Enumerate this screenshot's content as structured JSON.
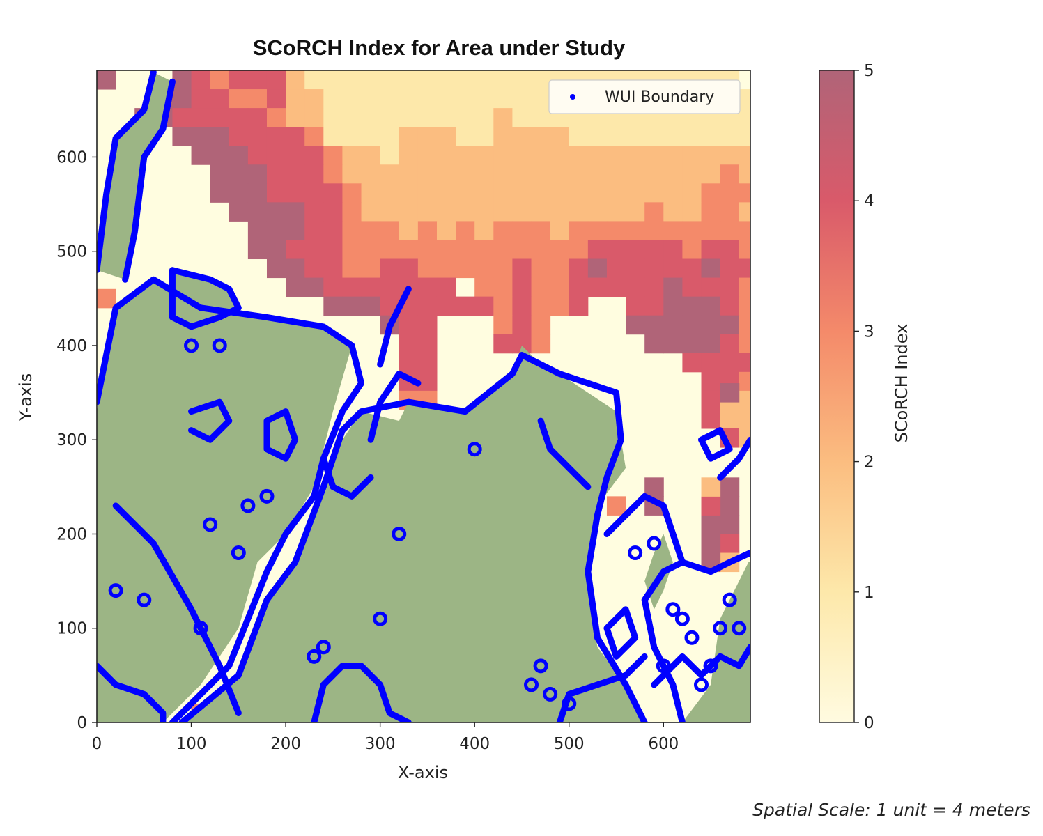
{
  "chart_data": {
    "type": "heatmap",
    "title": "SCoRCH Index for Area under Study",
    "xlabel": "X-axis",
    "ylabel": "Y-axis",
    "xlim": [
      0,
      692
    ],
    "ylim": [
      0,
      692
    ],
    "xticks": [
      0,
      100,
      200,
      300,
      400,
      500,
      600
    ],
    "yticks": [
      0,
      100,
      200,
      300,
      400,
      500,
      600
    ],
    "grid": false,
    "colorbar": {
      "label": "SCoRCH Index",
      "range": [
        0,
        5
      ],
      "ticks": [
        0,
        1,
        2,
        3,
        4,
        5
      ],
      "colormap": [
        "#fffbe0",
        "#fde8aa",
        "#fbbd80",
        "#f48a6a",
        "#d95a6a",
        "#b06478"
      ]
    },
    "legend": {
      "position": "top-right",
      "entries": [
        {
          "name": "WUI Boundary",
          "marker": "dot",
          "color": "#0000ff"
        }
      ]
    },
    "cell_size": 20,
    "nonburnable_color": "#9cb585",
    "boundary_color": "#0000ff",
    "grid_values": [
      "5000543444211111111111111111111111000",
      "0005544334221111111111111111111111100",
      "0055444443221111111112111111111111110",
      "0000555444431111222112222111111111120",
      "0000055544443221222222222222222222221",
      "0000005554443222222222222222222223222",
      "0000005554444322222222222222222233322",
      "0000000555544322222222222222232233222",
      "0000000055544333232323332333333333322",
      "0000000055444333333333333344444344322",
      "0000000005544334433333433454444454422",
      "0000000000554444444033433444445444322",
      "0000000000005554444443433400445554332",
      "0000000000000005440003430000555555330",
      "0000000000000000440004430000055554330",
      "0000000000000000440000000000000444420",
      "0000000000000000440000000000000044322",
      "0000000000000000330000000000000042232",
      "0000000000000000000000000000000042222",
      "0000000000000000000000000000000004222",
      "0000000000000000000000000000000000000"
    ],
    "extra_cells": [
      {
        "x": 0,
        "y": 440,
        "value": 3
      },
      {
        "x": 100,
        "y": 0,
        "value": 3
      },
      {
        "x": 540,
        "y": 220,
        "value": 3
      },
      {
        "x": 660,
        "y": 200,
        "value": 5
      },
      {
        "x": 640,
        "y": 200,
        "value": 5
      },
      {
        "x": 660,
        "y": 220,
        "value": 5
      },
      {
        "x": 640,
        "y": 220,
        "value": 4
      },
      {
        "x": 660,
        "y": 180,
        "value": 4
      },
      {
        "x": 640,
        "y": 180,
        "value": 5
      },
      {
        "x": 660,
        "y": 160,
        "value": 2
      },
      {
        "x": 640,
        "y": 160,
        "value": 5
      },
      {
        "x": 660,
        "y": 240,
        "value": 5
      },
      {
        "x": 640,
        "y": 240,
        "value": 2
      },
      {
        "x": 660,
        "y": 340,
        "value": 5
      },
      {
        "x": 580,
        "y": 220,
        "value": 5
      },
      {
        "x": 580,
        "y": 240,
        "value": 5
      }
    ],
    "nonburnable_regions": [
      [
        [
          0,
          0
        ],
        [
          0,
          330
        ],
        [
          10,
          390
        ],
        [
          20,
          440
        ],
        [
          60,
          470
        ],
        [
          110,
          440
        ],
        [
          180,
          430
        ],
        [
          240,
          420
        ],
        [
          270,
          400
        ],
        [
          250,
          330
        ],
        [
          230,
          250
        ],
        [
          200,
          200
        ],
        [
          170,
          170
        ],
        [
          150,
          100
        ],
        [
          110,
          40
        ],
        [
          70,
          0
        ]
      ],
      [
        [
          90,
          0
        ],
        [
          150,
          50
        ],
        [
          180,
          130
        ],
        [
          210,
          170
        ],
        [
          240,
          250
        ],
        [
          260,
          300
        ],
        [
          280,
          330
        ],
        [
          320,
          320
        ],
        [
          330,
          340
        ],
        [
          390,
          330
        ],
        [
          440,
          370
        ],
        [
          450,
          400
        ],
        [
          470,
          380
        ],
        [
          490,
          370
        ],
        [
          520,
          350
        ],
        [
          550,
          330
        ],
        [
          560,
          270
        ],
        [
          530,
          230
        ],
        [
          520,
          150
        ],
        [
          530,
          80
        ],
        [
          560,
          40
        ],
        [
          580,
          0
        ]
      ],
      [
        [
          0,
          480
        ],
        [
          10,
          560
        ],
        [
          20,
          620
        ],
        [
          50,
          650
        ],
        [
          60,
          690
        ],
        [
          80,
          680
        ],
        [
          70,
          630
        ],
        [
          50,
          600
        ],
        [
          40,
          520
        ],
        [
          30,
          470
        ]
      ],
      [
        [
          80,
          480
        ],
        [
          120,
          470
        ],
        [
          140,
          460
        ],
        [
          150,
          440
        ],
        [
          130,
          430
        ],
        [
          100,
          420
        ],
        [
          80,
          430
        ]
      ],
      [
        [
          620,
          0
        ],
        [
          650,
          40
        ],
        [
          660,
          110
        ],
        [
          690,
          170
        ],
        [
          692,
          170
        ],
        [
          692,
          0
        ]
      ],
      [
        [
          600,
          200
        ],
        [
          610,
          170
        ],
        [
          600,
          140
        ],
        [
          590,
          120
        ],
        [
          580,
          150
        ],
        [
          590,
          180
        ]
      ]
    ],
    "boundary_paths": [
      [
        [
          0,
          340
        ],
        [
          10,
          390
        ],
        [
          20,
          440
        ],
        [
          60,
          470
        ],
        [
          110,
          440
        ],
        [
          180,
          430
        ],
        [
          240,
          420
        ],
        [
          270,
          400
        ],
        [
          280,
          360
        ],
        [
          260,
          330
        ],
        [
          240,
          280
        ],
        [
          230,
          240
        ],
        [
          200,
          200
        ],
        [
          180,
          160
        ],
        [
          160,
          110
        ],
        [
          140,
          60
        ],
        [
          110,
          30
        ],
        [
          80,
          0
        ]
      ],
      [
        [
          90,
          0
        ],
        [
          150,
          50
        ],
        [
          180,
          130
        ],
        [
          210,
          170
        ],
        [
          240,
          250
        ],
        [
          260,
          310
        ],
        [
          280,
          330
        ],
        [
          330,
          340
        ],
        [
          390,
          330
        ],
        [
          440,
          370
        ],
        [
          450,
          390
        ],
        [
          470,
          380
        ],
        [
          490,
          370
        ],
        [
          520,
          360
        ],
        [
          550,
          350
        ],
        [
          555,
          300
        ],
        [
          540,
          260
        ],
        [
          530,
          220
        ],
        [
          520,
          160
        ],
        [
          530,
          90
        ],
        [
          560,
          40
        ],
        [
          580,
          0
        ]
      ],
      [
        [
          0,
          480
        ],
        [
          10,
          560
        ],
        [
          20,
          620
        ],
        [
          50,
          650
        ],
        [
          60,
          690
        ]
      ],
      [
        [
          80,
          480
        ],
        [
          120,
          470
        ],
        [
          140,
          460
        ],
        [
          150,
          440
        ],
        [
          130,
          430
        ],
        [
          100,
          420
        ],
        [
          80,
          430
        ],
        [
          80,
          480
        ]
      ],
      [
        [
          30,
          470
        ],
        [
          40,
          520
        ],
        [
          50,
          600
        ],
        [
          70,
          630
        ],
        [
          80,
          680
        ]
      ],
      [
        [
          150,
          10
        ],
        [
          130,
          60
        ],
        [
          100,
          120
        ],
        [
          60,
          190
        ],
        [
          20,
          230
        ]
      ],
      [
        [
          0,
          60
        ],
        [
          20,
          40
        ],
        [
          50,
          30
        ],
        [
          70,
          10
        ],
        [
          70,
          0
        ]
      ],
      [
        [
          230,
          0
        ],
        [
          240,
          40
        ],
        [
          260,
          60
        ],
        [
          280,
          60
        ],
        [
          300,
          40
        ],
        [
          310,
          10
        ],
        [
          330,
          0
        ]
      ],
      [
        [
          490,
          0
        ],
        [
          500,
          30
        ],
        [
          530,
          40
        ],
        [
          560,
          50
        ],
        [
          580,
          70
        ]
      ],
      [
        [
          620,
          0
        ],
        [
          610,
          40
        ],
        [
          590,
          80
        ],
        [
          580,
          130
        ],
        [
          600,
          160
        ],
        [
          620,
          170
        ],
        [
          650,
          160
        ],
        [
          670,
          170
        ],
        [
          692,
          180
        ]
      ],
      [
        [
          540,
          200
        ],
        [
          560,
          220
        ],
        [
          580,
          240
        ],
        [
          600,
          230
        ],
        [
          610,
          200
        ],
        [
          620,
          170
        ]
      ],
      [
        [
          300,
          380
        ],
        [
          310,
          420
        ],
        [
          330,
          460
        ]
      ],
      [
        [
          290,
          300
        ],
        [
          300,
          340
        ],
        [
          320,
          370
        ],
        [
          340,
          360
        ]
      ],
      [
        [
          240,
          280
        ],
        [
          250,
          250
        ],
        [
          270,
          240
        ],
        [
          290,
          260
        ]
      ],
      [
        [
          470,
          320
        ],
        [
          480,
          290
        ],
        [
          500,
          270
        ],
        [
          520,
          250
        ]
      ],
      [
        [
          660,
          260
        ],
        [
          680,
          280
        ],
        [
          692,
          300
        ]
      ],
      [
        [
          640,
          300
        ],
        [
          650,
          280
        ],
        [
          670,
          290
        ],
        [
          660,
          310
        ],
        [
          640,
          300
        ]
      ],
      [
        [
          180,
          320
        ],
        [
          200,
          330
        ],
        [
          210,
          300
        ],
        [
          200,
          280
        ],
        [
          180,
          290
        ],
        [
          180,
          320
        ]
      ],
      [
        [
          100,
          330
        ],
        [
          130,
          340
        ],
        [
          140,
          320
        ],
        [
          120,
          300
        ],
        [
          100,
          310
        ]
      ],
      [
        [
          540,
          100
        ],
        [
          560,
          120
        ],
        [
          570,
          90
        ],
        [
          550,
          70
        ],
        [
          540,
          100
        ]
      ],
      [
        [
          590,
          40
        ],
        [
          620,
          70
        ],
        [
          640,
          50
        ],
        [
          660,
          70
        ],
        [
          680,
          60
        ],
        [
          692,
          80
        ]
      ]
    ],
    "boundary_dots": [
      [
        100,
        400
      ],
      [
        130,
        400
      ],
      [
        180,
        240
      ],
      [
        320,
        200
      ],
      [
        300,
        110
      ],
      [
        400,
        290
      ],
      [
        460,
        40
      ],
      [
        470,
        60
      ],
      [
        480,
        30
      ],
      [
        500,
        20
      ],
      [
        50,
        130
      ],
      [
        20,
        140
      ],
      [
        120,
        210
      ],
      [
        110,
        100
      ],
      [
        230,
        70
      ],
      [
        240,
        80
      ],
      [
        150,
        180
      ],
      [
        160,
        230
      ],
      [
        620,
        110
      ],
      [
        610,
        120
      ],
      [
        630,
        90
      ],
      [
        650,
        60
      ],
      [
        640,
        40
      ],
      [
        600,
        60
      ],
      [
        570,
        180
      ],
      [
        590,
        190
      ],
      [
        670,
        130
      ],
      [
        680,
        100
      ],
      [
        660,
        100
      ]
    ]
  }
}
